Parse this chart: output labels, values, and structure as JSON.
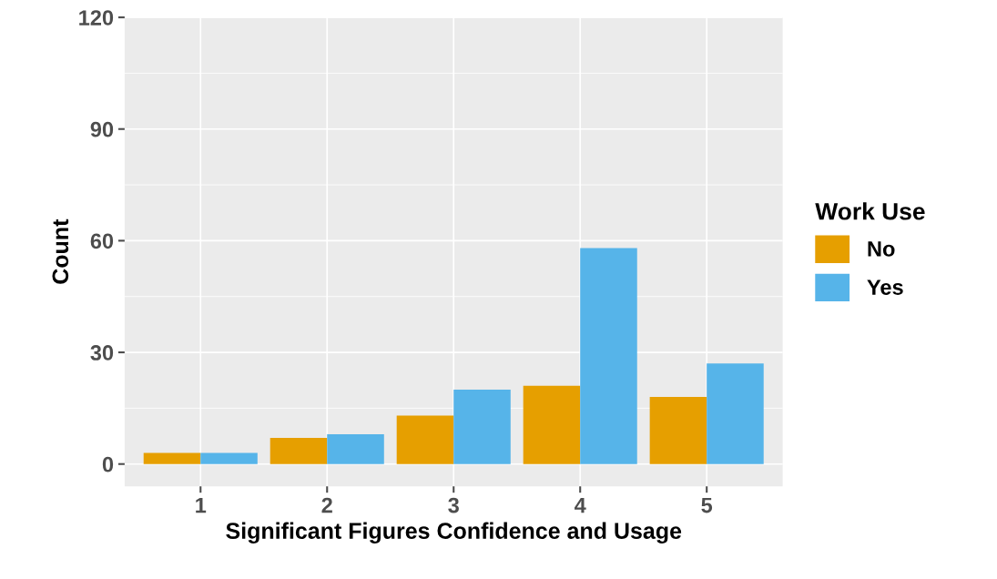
{
  "chart_data": {
    "type": "bar",
    "xlabel": "Significant Figures Confidence and Usage",
    "ylabel": "Count",
    "legend_title": "Work Use",
    "categories": [
      "1",
      "2",
      "3",
      "4",
      "5"
    ],
    "series": [
      {
        "name": "No",
        "color": "#e69f00",
        "values": [
          3,
          7,
          13,
          21,
          18
        ]
      },
      {
        "name": "Yes",
        "color": "#56b4e9",
        "values": [
          3,
          8,
          20,
          58,
          27
        ]
      }
    ],
    "ylim": [
      -6,
      120
    ],
    "yticks": [
      0,
      30,
      60,
      90,
      120
    ],
    "grid": true,
    "legend": "right"
  }
}
